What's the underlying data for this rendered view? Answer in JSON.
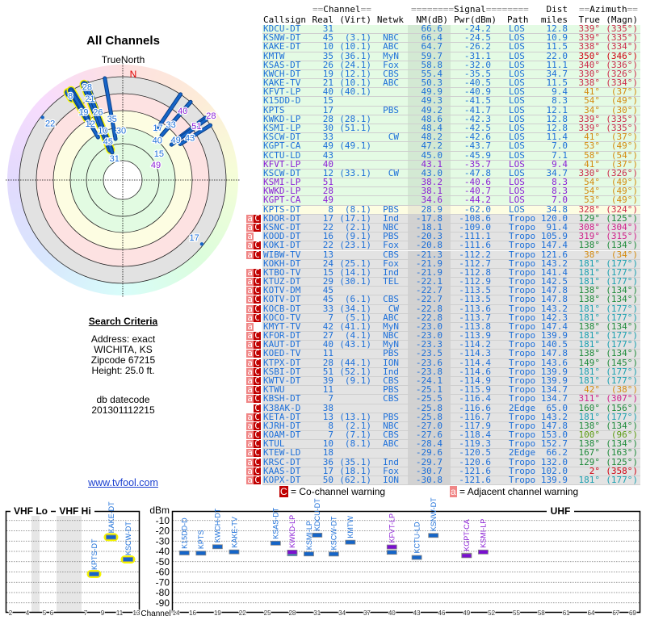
{
  "colors": {
    "blue": "#1c6fd9",
    "purple": "#8b1fd6",
    "red": "#cc2a4a",
    "darkred": "#d00010",
    "orange": "#d48a10",
    "magenta": "#d0208a",
    "green": "#1e8a3a",
    "teal": "#1aa0b0",
    "olive": "#5a9a10",
    "bg_los": "#e4fbe4",
    "bg_los_nm": "#d3e9d3",
    "bg_weak": "#fdfde2",
    "bg_weak_nm": "#ecebd6",
    "bg_tropo": "#e3e3e3",
    "bg_tropo_nm": "#d2d2d2"
  },
  "polar": {
    "title": "All Channels",
    "true_north": "TrueNorth",
    "north": "N"
  },
  "search": {
    "heading": "Search Criteria",
    "address": "Address: exact",
    "city": "WICHITA, KS",
    "zipcode": "Zipcode 67215",
    "height": "Height: 25.0 ft.",
    "db_label": "db datecode",
    "db_value": "201301112215"
  },
  "link": "www.tvfool.com",
  "table": {
    "group_channel": "Channel",
    "group_signal": "Signal",
    "group_dist": "Dist",
    "group_azimuth": "Azimuth",
    "h_callsign": "Callsign",
    "h_real": "Real",
    "h_virt": "(Virt)",
    "h_netwk": "Netwk",
    "h_nm": "NM(dB)",
    "h_pwr": "Pwr(dBm)",
    "h_path": "Path",
    "h_miles": "miles",
    "h_true": "True",
    "h_magn": "(Magn)"
  },
  "stations": [
    {
      "cs": "KDCU-DT",
      "real": "31",
      "virt": "",
      "net": "",
      "nm": "66.6",
      "pwr": "-24.2",
      "path": "LOS",
      "dist": "12.8",
      "az": "339°",
      "mag": "(335°)",
      "azc": "red",
      "csc": "blue",
      "bg": "los",
      "flags": ""
    },
    {
      "cs": "KSNW-DT",
      "real": "45",
      "virt": "(3.1)",
      "net": "NBC",
      "nm": "66.4",
      "pwr": "-24.5",
      "path": "LOS",
      "dist": "10.9",
      "az": "339°",
      "mag": "(335°)",
      "azc": "red",
      "csc": "blue",
      "bg": "los",
      "flags": ""
    },
    {
      "cs": "KAKE-DT",
      "real": "10",
      "virt": "(10.1)",
      "net": "ABC",
      "nm": "64.7",
      "pwr": "-26.2",
      "path": "LOS",
      "dist": "11.5",
      "az": "338°",
      "mag": "(334°)",
      "azc": "red",
      "csc": "blue",
      "bg": "los",
      "flags": ""
    },
    {
      "cs": "KMTW",
      "real": "35",
      "virt": "(36.1)",
      "net": "MyN",
      "nm": "59.7",
      "pwr": "-31.1",
      "path": "LOS",
      "dist": "22.0",
      "az": "350°",
      "mag": "(346°)",
      "azc": "darkred",
      "csc": "blue",
      "bg": "los",
      "flags": ""
    },
    {
      "cs": "KSAS-DT",
      "real": "26",
      "virt": "(24.1)",
      "net": "Fox",
      "nm": "58.8",
      "pwr": "-32.0",
      "path": "LOS",
      "dist": "11.1",
      "az": "340°",
      "mag": "(336°)",
      "azc": "red",
      "csc": "blue",
      "bg": "los",
      "flags": ""
    },
    {
      "cs": "KWCH-DT",
      "real": "19",
      "virt": "(12.1)",
      "net": "CBS",
      "nm": "55.4",
      "pwr": "-35.5",
      "path": "LOS",
      "dist": "34.7",
      "az": "330°",
      "mag": "(326°)",
      "azc": "red",
      "csc": "blue",
      "bg": "los",
      "flags": ""
    },
    {
      "cs": "KAKE-TV",
      "real": "21",
      "virt": "(10.1)",
      "net": "ABC",
      "nm": "50.3",
      "pwr": "-40.5",
      "path": "LOS",
      "dist": "11.5",
      "az": "338°",
      "mag": "(334°)",
      "azc": "red",
      "csc": "blue",
      "bg": "los",
      "flags": ""
    },
    {
      "cs": "KFVT-LP",
      "real": "40",
      "virt": "(40.1)",
      "net": "",
      "nm": "49.9",
      "pwr": "-40.9",
      "path": "LOS",
      "dist": "9.4",
      "az": "41°",
      "mag": "(37°)",
      "azc": "orange",
      "csc": "blue",
      "bg": "los",
      "flags": ""
    },
    {
      "cs": "K15DD-D",
      "real": "15",
      "virt": "",
      "net": "",
      "nm": "49.3",
      "pwr": "-41.5",
      "path": "LOS",
      "dist": "8.3",
      "az": "54°",
      "mag": "(49°)",
      "azc": "orange",
      "csc": "blue",
      "bg": "los",
      "flags": ""
    },
    {
      "cs": "KPTS",
      "real": "17",
      "virt": "",
      "net": "PBS",
      "nm": "49.2",
      "pwr": "-41.7",
      "path": "LOS",
      "dist": "12.1",
      "az": "34°",
      "mag": "(30°)",
      "azc": "orange",
      "csc": "blue",
      "bg": "los",
      "flags": ""
    },
    {
      "cs": "KWKD-LP",
      "real": "28",
      "virt": "(28.1)",
      "net": "",
      "nm": "48.6",
      "pwr": "-42.3",
      "path": "LOS",
      "dist": "12.8",
      "az": "339°",
      "mag": "(335°)",
      "azc": "red",
      "csc": "blue",
      "bg": "los",
      "flags": ""
    },
    {
      "cs": "KSMI-LP",
      "real": "30",
      "virt": "(51.1)",
      "net": "",
      "nm": "48.4",
      "pwr": "-42.5",
      "path": "LOS",
      "dist": "12.8",
      "az": "339°",
      "mag": "(335°)",
      "azc": "red",
      "csc": "blue",
      "bg": "los",
      "flags": ""
    },
    {
      "cs": "KSCW-DT",
      "real": "33",
      "virt": "",
      "net": "CW",
      "nm": "48.2",
      "pwr": "-42.6",
      "path": "LOS",
      "dist": "11.4",
      "az": "41°",
      "mag": "(37°)",
      "azc": "orange",
      "csc": "blue",
      "bg": "los",
      "flags": ""
    },
    {
      "cs": "KGPT-CA",
      "real": "49",
      "virt": "(49.1)",
      "net": "",
      "nm": "47.2",
      "pwr": "-43.7",
      "path": "LOS",
      "dist": "7.0",
      "az": "53°",
      "mag": "(49°)",
      "azc": "orange",
      "csc": "blue",
      "bg": "los",
      "flags": ""
    },
    {
      "cs": "KCTU-LD",
      "real": "43",
      "virt": "",
      "net": "",
      "nm": "45.0",
      "pwr": "-45.9",
      "path": "LOS",
      "dist": "7.1",
      "az": "58°",
      "mag": "(54°)",
      "azc": "orange",
      "csc": "blue",
      "bg": "los",
      "flags": ""
    },
    {
      "cs": "KFVT-LP",
      "real": "40",
      "virt": "",
      "net": "",
      "nm": "43.1",
      "pwr": "-35.7",
      "path": "LOS",
      "dist": "9.4",
      "az": "41°",
      "mag": "(37°)",
      "azc": "orange",
      "csc": "purple",
      "bg": "los",
      "flags": ""
    },
    {
      "cs": "KSCW-DT",
      "real": "12",
      "virt": "(33.1)",
      "net": "CW",
      "nm": "43.0",
      "pwr": "-47.8",
      "path": "LOS",
      "dist": "34.7",
      "az": "330°",
      "mag": "(326°)",
      "azc": "red",
      "csc": "blue",
      "bg": "los",
      "flags": ""
    },
    {
      "cs": "KSMI-LP",
      "real": "51",
      "virt": "",
      "net": "",
      "nm": "38.2",
      "pwr": "-40.6",
      "path": "LOS",
      "dist": "8.3",
      "az": "54°",
      "mag": "(49°)",
      "azc": "orange",
      "csc": "purple",
      "bg": "los",
      "flags": ""
    },
    {
      "cs": "KWKD-LP",
      "real": "28",
      "virt": "",
      "net": "",
      "nm": "38.1",
      "pwr": "-40.7",
      "path": "LOS",
      "dist": "8.3",
      "az": "54°",
      "mag": "(49°)",
      "azc": "orange",
      "csc": "purple",
      "bg": "los",
      "flags": ""
    },
    {
      "cs": "KGPT-CA",
      "real": "49",
      "virt": "",
      "net": "",
      "nm": "34.6",
      "pwr": "-44.2",
      "path": "LOS",
      "dist": "7.0",
      "az": "53°",
      "mag": "(49°)",
      "azc": "orange",
      "csc": "purple",
      "bg": "los",
      "flags": ""
    },
    {
      "cs": "KPTS-DT",
      "real": "8",
      "virt": "(8.1)",
      "net": "PBS",
      "nm": "28.9",
      "pwr": "-62.0",
      "path": "LOS",
      "dist": "34.8",
      "az": "328°",
      "mag": "(324°)",
      "azc": "red",
      "csc": "blue",
      "bg": "weak",
      "flags": ""
    },
    {
      "cs": "KDOR-DT",
      "real": "17",
      "virt": "(17.1)",
      "net": "Ind",
      "nm": "-17.8",
      "pwr": "-108.6",
      "path": "Tropo",
      "dist": "120.0",
      "az": "129°",
      "mag": "(125°)",
      "azc": "green",
      "csc": "blue",
      "bg": "tropo",
      "flags": "ac",
      "polar": "dot"
    },
    {
      "cs": "KSNC-DT",
      "real": "22",
      "virt": "(2.1)",
      "net": "NBC",
      "nm": "-18.1",
      "pwr": "-109.0",
      "path": "Tropo",
      "dist": "91.4",
      "az": "308°",
      "mag": "(304°)",
      "azc": "magenta",
      "csc": "blue",
      "bg": "tropo",
      "flags": "ac",
      "polar": "dot"
    },
    {
      "cs": "KOOD-DT",
      "real": "16",
      "virt": "(9.1)",
      "net": "PBS",
      "nm": "-20.3",
      "pwr": "-111.1",
      "path": "Tropo",
      "dist": "105.9",
      "az": "319°",
      "mag": "(315°)",
      "azc": "magenta",
      "csc": "blue",
      "bg": "tropo",
      "flags": "a"
    },
    {
      "cs": "KOKI-DT",
      "real": "22",
      "virt": "(23.1)",
      "net": "Fox",
      "nm": "-20.8",
      "pwr": "-111.6",
      "path": "Tropo",
      "dist": "147.4",
      "az": "138°",
      "mag": "(134°)",
      "azc": "green",
      "csc": "blue",
      "bg": "tropo",
      "flags": "ac"
    },
    {
      "cs": "WIBW-TV",
      "real": "13",
      "virt": "",
      "net": "CBS",
      "nm": "-21.3",
      "pwr": "-112.2",
      "path": "Tropo",
      "dist": "121.6",
      "az": "38°",
      "mag": "(34°)",
      "azc": "orange",
      "csc": "blue",
      "bg": "tropo",
      "flags": "ac"
    },
    {
      "cs": "KOKH-DT",
      "real": "24",
      "virt": "(25.1)",
      "net": "Fox",
      "nm": "-21.9",
      "pwr": "-112.7",
      "path": "Tropo",
      "dist": "143.2",
      "az": "181°",
      "mag": "(177°)",
      "azc": "teal",
      "csc": "blue",
      "bg": "tropo",
      "flags": ""
    },
    {
      "cs": "KTBO-TV",
      "real": "15",
      "virt": "(14.1)",
      "net": "Ind",
      "nm": "-21.9",
      "pwr": "-112.8",
      "path": "Tropo",
      "dist": "141.4",
      "az": "181°",
      "mag": "(177°)",
      "azc": "teal",
      "csc": "blue",
      "bg": "tropo",
      "flags": "ac"
    },
    {
      "cs": "KTUZ-DT",
      "real": "29",
      "virt": "(30.1)",
      "net": "TEL",
      "nm": "-22.1",
      "pwr": "-112.9",
      "path": "Tropo",
      "dist": "142.5",
      "az": "181°",
      "mag": "(177°)",
      "azc": "teal",
      "csc": "blue",
      "bg": "tropo",
      "flags": "ac"
    },
    {
      "cs": "KOTV-DM",
      "real": "45",
      "virt": "",
      "net": "",
      "nm": "-22.7",
      "pwr": "-113.5",
      "path": "Tropo",
      "dist": "147.8",
      "az": "138°",
      "mag": "(134°)",
      "azc": "green",
      "csc": "blue",
      "bg": "tropo",
      "flags": "ac"
    },
    {
      "cs": "KOTV-DT",
      "real": "45",
      "virt": "(6.1)",
      "net": "CBS",
      "nm": "-22.7",
      "pwr": "-113.5",
      "path": "Tropo",
      "dist": "147.8",
      "az": "138°",
      "mag": "(134°)",
      "azc": "green",
      "csc": "blue",
      "bg": "tropo",
      "flags": "ac"
    },
    {
      "cs": "KOCB-DT",
      "real": "33",
      "virt": "(34.1)",
      "net": "CW",
      "nm": "-22.8",
      "pwr": "-113.6",
      "path": "Tropo",
      "dist": "143.2",
      "az": "181°",
      "mag": "(177°)",
      "azc": "teal",
      "csc": "blue",
      "bg": "tropo",
      "flags": "ac"
    },
    {
      "cs": "KOCO-TV",
      "real": "7",
      "virt": "(5.1)",
      "net": "ABC",
      "nm": "-22.8",
      "pwr": "-113.7",
      "path": "Tropo",
      "dist": "142.3",
      "az": "181°",
      "mag": "(177°)",
      "azc": "teal",
      "csc": "blue",
      "bg": "tropo",
      "flags": "ac"
    },
    {
      "cs": "KMYT-TV",
      "real": "42",
      "virt": "(41.1)",
      "net": "MyN",
      "nm": "-23.0",
      "pwr": "-113.8",
      "path": "Tropo",
      "dist": "147.4",
      "az": "138°",
      "mag": "(134°)",
      "azc": "green",
      "csc": "blue",
      "bg": "tropo",
      "flags": "a"
    },
    {
      "cs": "KFOR-DT",
      "real": "27",
      "virt": "(4.1)",
      "net": "NBC",
      "nm": "-23.0",
      "pwr": "-113.9",
      "path": "Tropo",
      "dist": "139.9",
      "az": "181°",
      "mag": "(177°)",
      "azc": "teal",
      "csc": "blue",
      "bg": "tropo",
      "flags": "ac"
    },
    {
      "cs": "KAUT-DT",
      "real": "40",
      "virt": "(43.1)",
      "net": "MyN",
      "nm": "-23.3",
      "pwr": "-114.2",
      "path": "Tropo",
      "dist": "140.5",
      "az": "181°",
      "mag": "(177°)",
      "azc": "teal",
      "csc": "blue",
      "bg": "tropo",
      "flags": "ac"
    },
    {
      "cs": "KOED-TV",
      "real": "11",
      "virt": "",
      "net": "PBS",
      "nm": "-23.5",
      "pwr": "-114.3",
      "path": "Tropo",
      "dist": "147.8",
      "az": "138°",
      "mag": "(134°)",
      "azc": "green",
      "csc": "blue",
      "bg": "tropo",
      "flags": "ac"
    },
    {
      "cs": "KTPX-DT",
      "real": "28",
      "virt": "(44.1)",
      "net": "ION",
      "nm": "-23.6",
      "pwr": "-114.4",
      "path": "Tropo",
      "dist": "143.6",
      "az": "149°",
      "mag": "(145°)",
      "azc": "green",
      "csc": "blue",
      "bg": "tropo",
      "flags": "ac"
    },
    {
      "cs": "KSBI-DT",
      "real": "51",
      "virt": "(52.1)",
      "net": "Ind",
      "nm": "-23.8",
      "pwr": "-114.6",
      "path": "Tropo",
      "dist": "139.9",
      "az": "181°",
      "mag": "(177°)",
      "azc": "teal",
      "csc": "blue",
      "bg": "tropo",
      "flags": "ac"
    },
    {
      "cs": "KWTV-DT",
      "real": "39",
      "virt": "(9.1)",
      "net": "CBS",
      "nm": "-24.1",
      "pwr": "-114.9",
      "path": "Tropo",
      "dist": "139.9",
      "az": "181°",
      "mag": "(177°)",
      "azc": "teal",
      "csc": "blue",
      "bg": "tropo",
      "flags": "ac"
    },
    {
      "cs": "KTWU",
      "real": "11",
      "virt": "",
      "net": "PBS",
      "nm": "-25.1",
      "pwr": "-115.9",
      "path": "Tropo",
      "dist": "134.7",
      "az": "42°",
      "mag": "(38°)",
      "azc": "orange",
      "csc": "blue",
      "bg": "tropo",
      "flags": "ac"
    },
    {
      "cs": "KBSH-DT",
      "real": "7",
      "virt": "",
      "net": "CBS",
      "nm": "-25.5",
      "pwr": "-116.4",
      "path": "Tropo",
      "dist": "134.7",
      "az": "311°",
      "mag": "(307°)",
      "azc": "magenta",
      "csc": "blue",
      "bg": "tropo",
      "flags": "ac"
    },
    {
      "cs": "K38AK-D",
      "real": "38",
      "virt": "",
      "net": "",
      "nm": "-25.8",
      "pwr": "-116.6",
      "path": "2Edge",
      "dist": "65.0",
      "az": "160°",
      "mag": "(156°)",
      "azc": "green",
      "csc": "blue",
      "bg": "tropo",
      "flags": "c"
    },
    {
      "cs": "KETA-DT",
      "real": "13",
      "virt": "(13.1)",
      "net": "PBS",
      "nm": "-25.8",
      "pwr": "-116.7",
      "path": "Tropo",
      "dist": "143.2",
      "az": "181°",
      "mag": "(177°)",
      "azc": "teal",
      "csc": "blue",
      "bg": "tropo",
      "flags": "ac"
    },
    {
      "cs": "KJRH-DT",
      "real": "8",
      "virt": "(2.1)",
      "net": "NBC",
      "nm": "-27.0",
      "pwr": "-117.9",
      "path": "Tropo",
      "dist": "147.8",
      "az": "138°",
      "mag": "(134°)",
      "azc": "green",
      "csc": "blue",
      "bg": "tropo",
      "flags": "ac"
    },
    {
      "cs": "KOAM-DT",
      "real": "7",
      "virt": "(7.1)",
      "net": "CBS",
      "nm": "-27.6",
      "pwr": "-118.4",
      "path": "Tropo",
      "dist": "153.0",
      "az": "100°",
      "mag": "(96°)",
      "azc": "olive",
      "csc": "blue",
      "bg": "tropo",
      "flags": "ac"
    },
    {
      "cs": "KTUL",
      "real": "10",
      "virt": "(8.1)",
      "net": "ABC",
      "nm": "-28.4",
      "pwr": "-119.3",
      "path": "Tropo",
      "dist": "152.7",
      "az": "138°",
      "mag": "(134°)",
      "azc": "green",
      "csc": "blue",
      "bg": "tropo",
      "flags": "ac"
    },
    {
      "cs": "KTEW-LD",
      "real": "18",
      "virt": "",
      "net": "",
      "nm": "-29.6",
      "pwr": "-120.5",
      "path": "2Edge",
      "dist": "66.2",
      "az": "167°",
      "mag": "(163°)",
      "azc": "green",
      "csc": "blue",
      "bg": "tropo",
      "flags": "ac"
    },
    {
      "cs": "KRSC-DT",
      "real": "36",
      "virt": "(35.1)",
      "net": "Ind",
      "nm": "-29.7",
      "pwr": "-120.6",
      "path": "Tropo",
      "dist": "132.0",
      "az": "129°",
      "mag": "(125°)",
      "azc": "green",
      "csc": "blue",
      "bg": "tropo",
      "flags": "ac"
    },
    {
      "cs": "KAAS-DT",
      "real": "17",
      "virt": "(18.1)",
      "net": "Fox",
      "nm": "-30.7",
      "pwr": "-121.6",
      "path": "Tropo",
      "dist": "102.0",
      "az": "2°",
      "mag": "(358°)",
      "azc": "darkred",
      "csc": "blue",
      "bg": "tropo",
      "flags": "ac"
    },
    {
      "cs": "KOPX-DT",
      "real": "50",
      "virt": "(62.1)",
      "net": "ION",
      "nm": "-30.8",
      "pwr": "-121.6",
      "path": "Tropo",
      "dist": "139.9",
      "az": "181°",
      "mag": "(177°)",
      "azc": "teal",
      "csc": "blue",
      "bg": "tropo",
      "flags": "ac"
    }
  ],
  "flag_labels": {
    "a": "a",
    "c": "C"
  },
  "legend": {
    "co_flag": "C",
    "co_text": "= Co-channel warning",
    "adj_flag": "a",
    "adj_text": "= Adjacent channel warning"
  },
  "spectrum": {
    "vhf_lo": "VHF Lo",
    "vhf_hi": "VHF Hi",
    "uhf": "UHF",
    "unit": "dBm",
    "axis_label": "Channel",
    "dbm_ticks": [
      "-10",
      "-20",
      "-30",
      "-40",
      "-50",
      "-60",
      "-70",
      "-80",
      "-90"
    ],
    "vhf_ticks": [
      "2",
      "4",
      "5",
      "6",
      "7",
      "9",
      "11",
      "13"
    ],
    "uhf_ticks": [
      "14",
      "16",
      "19",
      "22",
      "25",
      "28",
      "31",
      "34",
      "37",
      "40",
      "43",
      "46",
      "49",
      "52",
      "55",
      "58",
      "61",
      "64",
      "67",
      "69"
    ],
    "ylim": [
      0,
      -100
    ]
  }
}
